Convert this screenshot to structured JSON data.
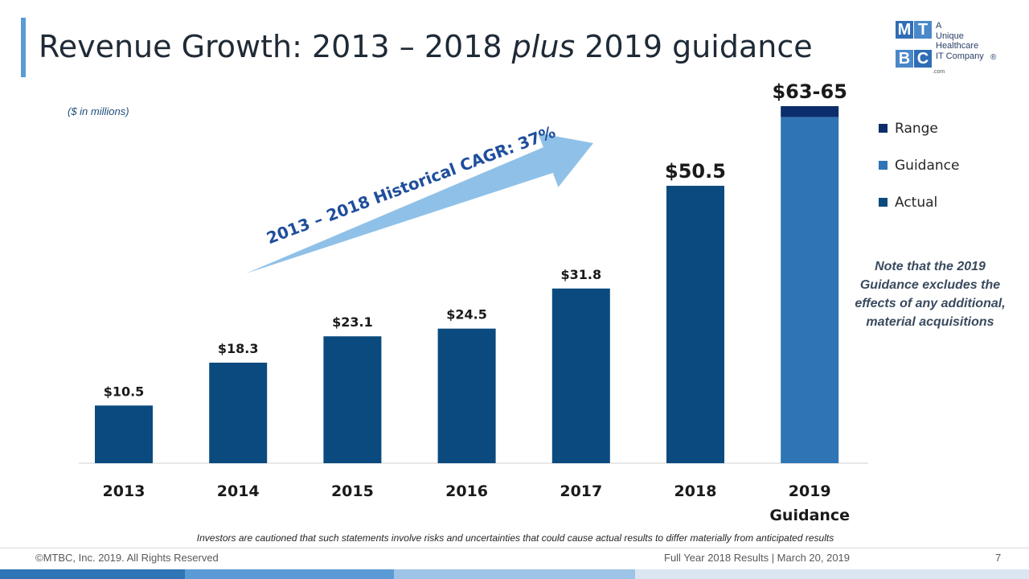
{
  "title": {
    "part1": "Revenue Growth: 2013 – 2018 ",
    "italic": "plus",
    "part2": " 2019 guidance"
  },
  "logo": {
    "letters": [
      "M",
      "T",
      "B",
      "C"
    ],
    "tagline": "A\nUnique\nHealthcare\nIT Company",
    "reg": "®",
    "dotcom": ".com"
  },
  "units_note": "($ in millions)",
  "cagr_label": "2013 – 2018 Historical CAGR: 37%",
  "side_note": "Note that the 2019 Guidance excludes the effects of any additional, material acquisitions",
  "disclaimer": "Investors are cautioned that such statements involve risks and uncertainties that could cause actual results to differ materially from anticipated results",
  "footer": {
    "left": "©MTBC, Inc. 2019. All Rights Reserved",
    "right": "Full Year 2018 Results | March 20, 2019",
    "page": "7"
  },
  "colors": {
    "actual": "#0b4a7e",
    "guidance": "#2f75b5",
    "range": "#0c2d6b",
    "arrow": "#8fc1e8",
    "arrow_text": "#1f4e9c",
    "title_accent": "#5b9bd5"
  },
  "chart_data": {
    "type": "bar",
    "stacked": true,
    "categories": [
      "2013",
      "2014",
      "2015",
      "2016",
      "2017",
      "2018",
      "2019\nGuidance"
    ],
    "series": [
      {
        "name": "Actual",
        "values": [
          10.5,
          18.3,
          23.1,
          24.5,
          31.8,
          50.5,
          0
        ]
      },
      {
        "name": "Guidance",
        "values": [
          0,
          0,
          0,
          0,
          0,
          0,
          63
        ]
      },
      {
        "name": "Range",
        "values": [
          0,
          0,
          0,
          0,
          0,
          0,
          2
        ]
      }
    ],
    "data_labels": [
      "$10.5",
      "$18.3",
      "$23.1",
      "$24.5",
      "$31.8",
      "$50.5",
      "$63-65"
    ],
    "legend": [
      "Range",
      "Guidance",
      "Actual"
    ],
    "legend_position": "right",
    "ylim": [
      0,
      65
    ],
    "grid": false
  }
}
